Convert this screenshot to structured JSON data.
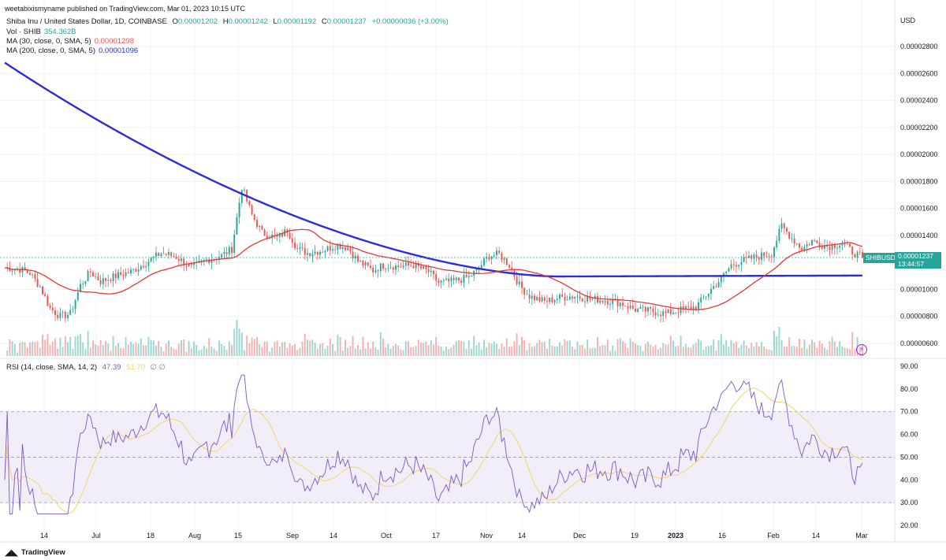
{
  "header": {
    "published_by": "weetabixismyname published on TradingView.com, Mar 01, 2023 10:15 UTC",
    "symbol_desc": "Shiba Inu / United States Dollar, 1D, COINBASE",
    "ohlc": {
      "o_label": "O",
      "o": "0.00001202",
      "h_label": "H",
      "h": "0.00001242",
      "l_label": "L",
      "l": "0.00001192",
      "c_label": "C",
      "c": "0.00001237",
      "change": "+0.00000036 (+3.00%)"
    },
    "vol_label": "Vol · SHIB",
    "vol_value": "354.362B",
    "ma30_label": "MA (30, close, 0, SMA, 5)",
    "ma30_value": "0.00001298",
    "ma200_label": "MA (200, close, 0, SMA, 5)",
    "ma200_value": "0.00001096",
    "rsi_label": "RSI (14, close, SMA, 14, 2)",
    "rsi_value": "47.39",
    "rsi_ma_value": "51.70",
    "rsi_extra": "∅  ∅"
  },
  "price_axis": {
    "currency": "USD",
    "last_symbol": "SHIBUSD",
    "last_price": "0.00001237",
    "countdown": "13:44:57"
  },
  "branding": {
    "tv": "TradingView"
  },
  "colors": {
    "up": "#26a69a",
    "down": "#ef5350",
    "ma30": "#e53935",
    "ma200": "#2c2cdc",
    "rsi": "#7e57c2",
    "rsi_ma": "#f3d36a",
    "rsi_band": "#ede7f6"
  },
  "chart_data": [
    {
      "type": "candlestick",
      "title": "Shiba Inu / United States Dollar, 1D, COINBASE",
      "ylim": [
        5.5e-06,
        3e-06
      ],
      "y_ticks": [
        "0.00002800",
        "0.00002600",
        "0.00002400",
        "0.00002200",
        "0.00002000",
        "0.00001800",
        "0.00001600",
        "0.00001400",
        "0.00001200",
        "0.00001000",
        "0.00000800",
        "0.00000600"
      ],
      "x_ticks": [
        "14",
        "Jul",
        "18",
        "Aug",
        "15",
        "Sep",
        "14",
        "Oct",
        "17",
        "Nov",
        "14",
        "Dec",
        "19",
        "2023",
        "16",
        "Feb",
        "14",
        "Mar"
      ],
      "close_path": [
        [
          0,
          1.16e-05
        ],
        [
          6,
          1.15e-05
        ],
        [
          10,
          1.12e-05
        ],
        [
          14,
          1.02e-05
        ],
        [
          18,
          8.6e-06
        ],
        [
          22,
          8e-06
        ],
        [
          26,
          8.2e-06
        ],
        [
          30,
          1.03e-05
        ],
        [
          34,
          1.13e-05
        ],
        [
          38,
          1.06e-05
        ],
        [
          44,
          1.1e-05
        ],
        [
          50,
          1.13e-05
        ],
        [
          56,
          1.2e-05
        ],
        [
          62,
          1.27e-05
        ],
        [
          68,
          1.24e-05
        ],
        [
          74,
          1.16e-05
        ],
        [
          80,
          1.22e-05
        ],
        [
          86,
          1.25e-05
        ],
        [
          90,
          1.3e-05
        ],
        [
          94,
          1.76e-05
        ],
        [
          98,
          1.55e-05
        ],
        [
          102,
          1.42e-05
        ],
        [
          108,
          1.38e-05
        ],
        [
          112,
          1.44e-05
        ],
        [
          116,
          1.3e-05
        ],
        [
          120,
          1.27e-05
        ],
        [
          126,
          1.29e-05
        ],
        [
          132,
          1.33e-05
        ],
        [
          136,
          1.31e-05
        ],
        [
          140,
          1.21e-05
        ],
        [
          146,
          1.14e-05
        ],
        [
          150,
          1.18e-05
        ],
        [
          156,
          1.17e-05
        ],
        [
          162,
          1.18e-05
        ],
        [
          168,
          1.13e-05
        ],
        [
          172,
          1.05e-05
        ],
        [
          178,
          1.06e-05
        ],
        [
          184,
          1.09e-05
        ],
        [
          188,
          1.16e-05
        ],
        [
          192,
          1.25e-05
        ],
        [
          196,
          1.26e-05
        ],
        [
          200,
          1.18e-05
        ],
        [
          204,
          1.03e-05
        ],
        [
          208,
          9.5e-06
        ],
        [
          214,
          9.1e-06
        ],
        [
          220,
          9.4e-06
        ],
        [
          226,
          9.5e-06
        ],
        [
          232,
          9.3e-06
        ],
        [
          238,
          9.2e-06
        ],
        [
          244,
          9e-06
        ],
        [
          250,
          8.5e-06
        ],
        [
          256,
          8.4e-06
        ],
        [
          262,
          8.2e-06
        ],
        [
          268,
          8.5e-06
        ],
        [
          274,
          8.7e-06
        ],
        [
          280,
          1e-05
        ],
        [
          284,
          1.08e-05
        ],
        [
          288,
          1.18e-05
        ],
        [
          292,
          1.21e-05
        ],
        [
          298,
          1.24e-05
        ],
        [
          304,
          1.27e-05
        ],
        [
          308,
          1.47e-05
        ],
        [
          312,
          1.38e-05
        ],
        [
          316,
          1.3e-05
        ],
        [
          320,
          1.36e-05
        ],
        [
          326,
          1.32e-05
        ],
        [
          332,
          1.34e-05
        ],
        [
          336,
          1.28e-05
        ],
        [
          340,
          1.237e-05
        ]
      ],
      "series": [
        {
          "name": "MA (30, close, 0, SMA, 5)",
          "value_last": 1.298e-05
        },
        {
          "name": "MA (200, close, 0, SMA, 5)",
          "value_last": 1.096e-05
        }
      ]
    },
    {
      "type": "line",
      "title": "RSI (14, close, SMA, 14, 2)",
      "ylim": [
        18,
        92
      ],
      "y_ticks": [
        "90.00",
        "80.00",
        "70.00",
        "60.00",
        "50.00",
        "40.00",
        "30.00",
        "20.00"
      ],
      "bands": [
        30,
        50,
        70
      ],
      "series": [
        {
          "name": "RSI",
          "last": 47.39
        },
        {
          "name": "RSI MA",
          "last": 51.7
        }
      ]
    }
  ]
}
